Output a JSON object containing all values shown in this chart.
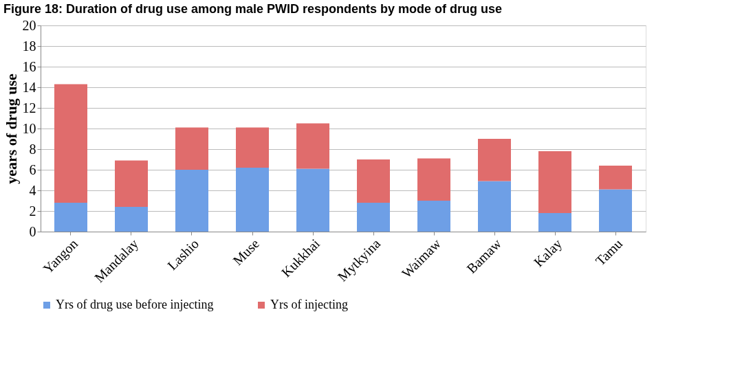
{
  "chart_data": {
    "type": "bar",
    "title": "Figure 18: Duration of drug use among male PWID respondents by mode of drug use",
    "ylabel": "years of drug use",
    "categories": [
      "Yangon",
      "Mandalay",
      "Lashio",
      "Muse",
      "Kukkhai",
      "Mytkyina",
      "Waimaw",
      "Bamaw",
      "Kalay",
      "Tamu"
    ],
    "series": [
      {
        "name": "Yrs of drug use before injecting",
        "color": "#6e9fe6",
        "values": [
          2.8,
          2.4,
          6.0,
          6.2,
          6.1,
          2.8,
          3.0,
          4.9,
          1.8,
          4.1
        ]
      },
      {
        "name": "Yrs of injecting",
        "color": "#e06c6c",
        "values": [
          11.5,
          4.5,
          4.1,
          3.9,
          4.4,
          4.2,
          4.1,
          4.1,
          6.0,
          2.3
        ]
      }
    ],
    "stacked": true,
    "ylim": [
      0,
      20
    ],
    "yticks": [
      0,
      2,
      4,
      6,
      8,
      10,
      12,
      14,
      16,
      18,
      20
    ],
    "grid": "y",
    "legend": "bottom"
  }
}
